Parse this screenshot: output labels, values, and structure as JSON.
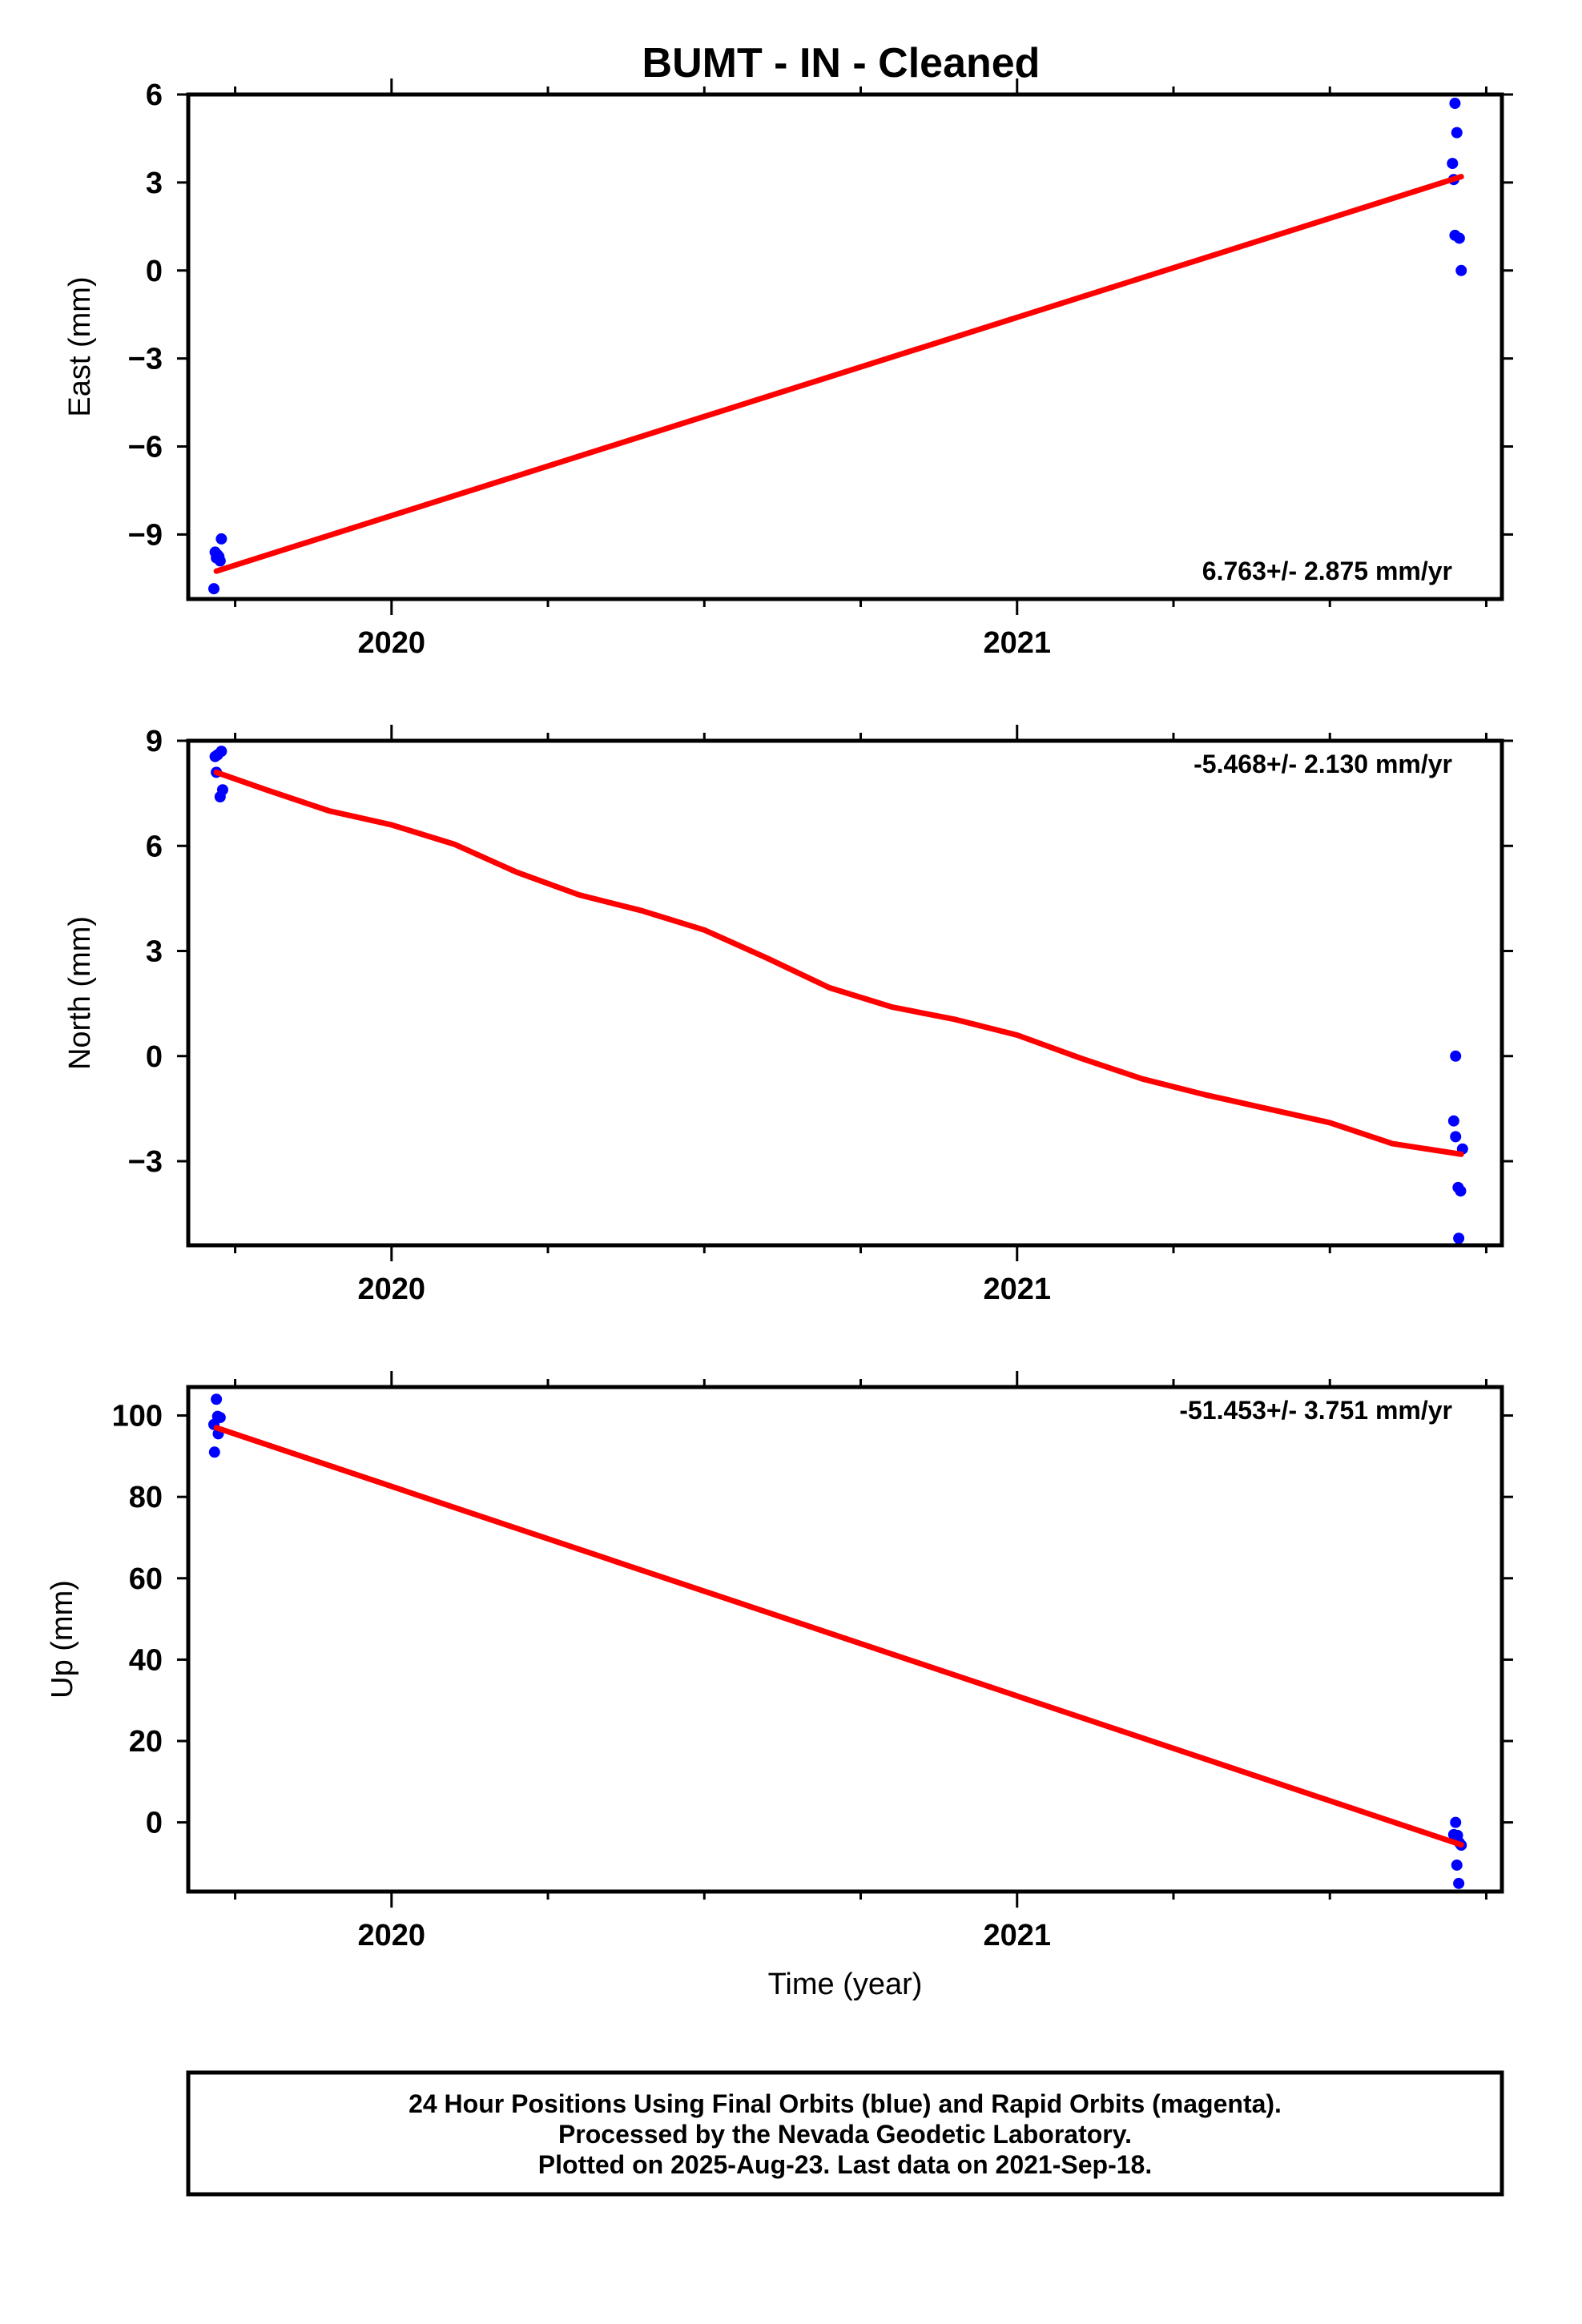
{
  "title": "BUMT  - IN - Cleaned",
  "footer": {
    "lines": [
      "24 Hour Positions Using Final Orbits (blue) and Rapid Orbits (magenta).",
      "Processed by the Nevada Geodetic Laboratory.",
      "Plotted on 2025-Aug-23. Last data on 2021-Sep-18."
    ]
  },
  "colors": {
    "final_orbits": "#0000ff",
    "fit_line": "#ff0000",
    "axes": "#000000"
  },
  "chart_data": [
    {
      "type": "scatter",
      "ylabel": "East (mm)",
      "xlabel": "",
      "rate": "6.763+/- 2.875 mm/yr",
      "rate_position": "bottom-right",
      "xlim": [
        2019.675,
        2021.775
      ],
      "ylim": [
        -11.2,
        6
      ],
      "x_ticks": [
        2020,
        2021
      ],
      "y_ticks": [
        6,
        3,
        0,
        -3,
        -6,
        -9
      ],
      "y_tick_labels": [
        "6",
        "3",
        "0",
        "−3",
        "−6",
        "−9"
      ],
      "points": [
        {
          "x": 2019.718,
          "y": -9.6
        },
        {
          "x": 2019.72,
          "y": -9.8
        },
        {
          "x": 2019.722,
          "y": -9.7
        },
        {
          "x": 2019.724,
          "y": -9.75
        },
        {
          "x": 2019.726,
          "y": -9.9
        },
        {
          "x": 2019.728,
          "y": -9.15
        },
        {
          "x": 2019.716,
          "y": -10.85
        },
        {
          "x": 2021.7,
          "y": 5.7
        },
        {
          "x": 2021.703,
          "y": 4.7
        },
        {
          "x": 2021.696,
          "y": 3.65
        },
        {
          "x": 2021.698,
          "y": 3.1
        },
        {
          "x": 2021.7,
          "y": 1.2
        },
        {
          "x": 2021.707,
          "y": 1.1
        },
        {
          "x": 2021.71,
          "y": 0.0
        }
      ],
      "fit": {
        "x": [
          2019.72,
          2021.71
        ],
        "y": [
          -10.25,
          3.2
        ]
      }
    },
    {
      "type": "scatter",
      "ylabel": "North (mm)",
      "xlabel": "",
      "rate": "-5.468+/- 2.130 mm/yr",
      "rate_position": "top-right",
      "xlim": [
        2019.675,
        2021.775
      ],
      "ylim": [
        -5.4,
        9
      ],
      "x_ticks": [
        2020,
        2021
      ],
      "y_ticks": [
        9,
        6,
        3,
        0,
        -3
      ],
      "y_tick_labels": [
        "9",
        "6",
        "3",
        "0",
        "−3"
      ],
      "points": [
        {
          "x": 2019.718,
          "y": 8.55
        },
        {
          "x": 2019.722,
          "y": 8.6
        },
        {
          "x": 2019.728,
          "y": 8.7
        },
        {
          "x": 2019.72,
          "y": 8.1
        },
        {
          "x": 2019.726,
          "y": 7.4
        },
        {
          "x": 2019.73,
          "y": 7.6
        },
        {
          "x": 2021.701,
          "y": 0.0
        },
        {
          "x": 2021.698,
          "y": -1.85
        },
        {
          "x": 2021.701,
          "y": -2.3
        },
        {
          "x": 2021.712,
          "y": -2.65
        },
        {
          "x": 2021.705,
          "y": -3.75
        },
        {
          "x": 2021.709,
          "y": -3.85
        },
        {
          "x": 2021.706,
          "y": -5.2
        }
      ],
      "fit": {
        "x": [
          2019.72,
          2019.8,
          2019.9,
          2020.0,
          2020.1,
          2020.2,
          2020.3,
          2020.4,
          2020.5,
          2020.6,
          2020.7,
          2020.8,
          2020.9,
          2021.0,
          2021.1,
          2021.2,
          2021.3,
          2021.4,
          2021.5,
          2021.6,
          2021.71
        ],
        "y": [
          8.1,
          7.6,
          7.0,
          6.6,
          6.05,
          5.25,
          4.6,
          4.15,
          3.6,
          2.8,
          1.95,
          1.4,
          1.05,
          0.6,
          -0.05,
          -0.65,
          -1.1,
          -1.5,
          -1.9,
          -2.5,
          -2.8
        ]
      }
    },
    {
      "type": "scatter",
      "ylabel": "Up (mm)",
      "xlabel": "Time (year)",
      "rate": "-51.453+/- 3.751 mm/yr",
      "rate_position": "top-right",
      "xlim": [
        2019.675,
        2021.775
      ],
      "ylim": [
        -17,
        107
      ],
      "x_ticks": [
        2020,
        2021
      ],
      "y_ticks": [
        100,
        80,
        60,
        40,
        20,
        0
      ],
      "y_tick_labels": [
        "100",
        "80",
        "60",
        "40",
        "20",
        "0"
      ],
      "points": [
        {
          "x": 2019.72,
          "y": 104
        },
        {
          "x": 2019.722,
          "y": 99.8
        },
        {
          "x": 2019.726,
          "y": 99.5
        },
        {
          "x": 2019.716,
          "y": 97.8
        },
        {
          "x": 2019.723,
          "y": 95.5
        },
        {
          "x": 2019.717,
          "y": 91
        },
        {
          "x": 2021.701,
          "y": 0.0
        },
        {
          "x": 2021.698,
          "y": -3.0
        },
        {
          "x": 2021.704,
          "y": -3.2
        },
        {
          "x": 2021.707,
          "y": -5.0
        },
        {
          "x": 2021.71,
          "y": -5.6
        },
        {
          "x": 2021.703,
          "y": -10.5
        },
        {
          "x": 2021.706,
          "y": -15.0
        }
      ],
      "fit": {
        "x": [
          2019.72,
          2021.71
        ],
        "y": [
          97,
          -5.5
        ]
      }
    }
  ]
}
